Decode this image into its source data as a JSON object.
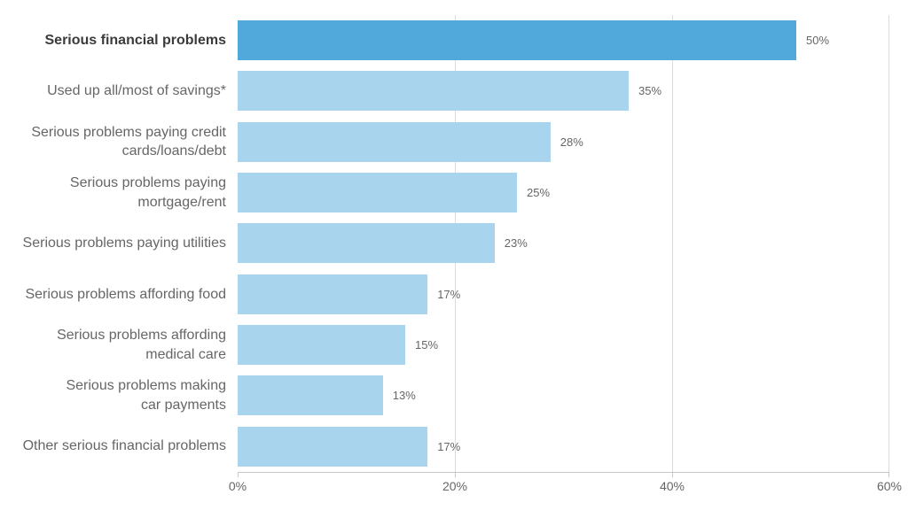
{
  "chart_data": {
    "type": "bar",
    "orientation": "horizontal",
    "categories": [
      "Serious financial problems",
      "Used up all/most of savings*",
      "Serious problems paying credit\ncards/loans/debt",
      "Serious problems paying\nmortgage/rent",
      "Serious problems paying utilities",
      "Serious problems affording food",
      "Serious problems affording\nmedical care",
      "Serious problems making\ncar payments",
      "Other serious financial problems"
    ],
    "values": [
      50,
      35,
      28,
      25,
      23,
      17,
      15,
      13,
      17
    ],
    "value_labels": [
      "50%",
      "35%",
      "28%",
      "25%",
      "23%",
      "17%",
      "15%",
      "13%",
      "17%"
    ],
    "highlight_index": 0,
    "xlabel": "",
    "ylabel": "",
    "xlim": [
      0,
      60
    ],
    "x_ticks": [
      "0%",
      "20%",
      "40%",
      "60%"
    ],
    "x_tick_values": [
      0,
      20,
      40,
      60
    ],
    "grid": "vertical-only",
    "legend": "none",
    "colors": {
      "highlight_bar": "#50a8db",
      "default_bar": "#a9d4ed",
      "gridline": "#dcdcdc",
      "axis_line": "#c8c8c8",
      "label_text": "#666666",
      "highlight_label_text": "#3b3b3b"
    }
  }
}
